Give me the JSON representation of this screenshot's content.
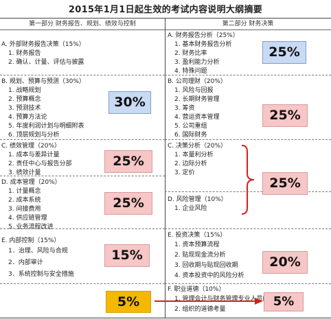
{
  "title": "2015年1月1日起生效的考试内容说明大纲摘要",
  "headers": {
    "left": "第一部分  财务报告、规划、绩效与控制",
    "right": "第二部分  财务决策"
  },
  "left": [
    {
      "heading": "A. 外部财务报告决策（15%）",
      "items": [
        "1. 财务报告",
        "2. 确认、计量、评估与披露"
      ],
      "weight": ""
    },
    {
      "heading": "B. 规划、预算与预测（30%）",
      "items": [
        "1. 战略规划",
        "2. 预算概念",
        "3. 预测技术",
        "4. 预算方法论",
        "5. 年度利润计划与明细附表",
        "6. 顶层规划与分析"
      ],
      "weight": "30%"
    },
    {
      "heading": "C. 绩效管理（20%）",
      "items": [
        "1. 成本与差异计量",
        "2. 责任中心与报告分部",
        "3. 绩效计量"
      ],
      "weight": "25%"
    },
    {
      "heading": "D. 成本管理（20%）",
      "items": [
        "1. 计量概念",
        "2. 成本系统",
        "3. 间接费用",
        "4. 供应链管理",
        "5.     业务流程改进"
      ],
      "weight": "25%"
    },
    {
      "heading": "E. 内部控制（15%）",
      "items": [
        "1．治理、风险与合规",
        "2．内部审计",
        "3．系统控制与安全措施"
      ],
      "weight": "15%"
    },
    {
      "heading": "",
      "items": [],
      "weight": "5%"
    }
  ],
  "right": [
    {
      "heading": "A. 财务报告分析（25%）",
      "items": [
        "1. 基本财务报告分析",
        "2. 财务比率",
        "3. 盈利能力分析",
        "4. 特殊问题"
      ],
      "weight": "25%"
    },
    {
      "heading": "B. 公司理财（20%）",
      "items": [
        "1. 风险与回报",
        "2. 长期财务管理",
        "3. 筹资",
        "4. 营运资本管理",
        "5. 公司重组",
        "6. 国际财务"
      ],
      "weight": "25%"
    },
    {
      "heading": "C. 决策分析（20%）",
      "items": [
        "1. 本量利分析",
        "2. 边际分析",
        "3. 定价"
      ],
      "weight": ""
    },
    {
      "heading": "D. 风险管理（10%）",
      "items": [
        "1. 企业风险"
      ],
      "weight": "25%"
    },
    {
      "heading": "E. 投资决策（15%）",
      "items": [
        "1. 资本预算流程",
        "2. 贴现现金流分析",
        "3. 回收期与贴现回收期",
        "4. 资本投资中的风险分析"
      ],
      "weight": "20%"
    },
    {
      "heading": "F. 职业道德（10%）",
      "items": [
        "1. 管理会计与财务管理专业人员的道德考量",
        "2. 组织的道德考量"
      ],
      "weight": "5%"
    }
  ],
  "colors": {
    "blue": "#c9daf5",
    "pink": "#f7c6c6",
    "gold": "#f5b800",
    "brace": "#d22020"
  }
}
